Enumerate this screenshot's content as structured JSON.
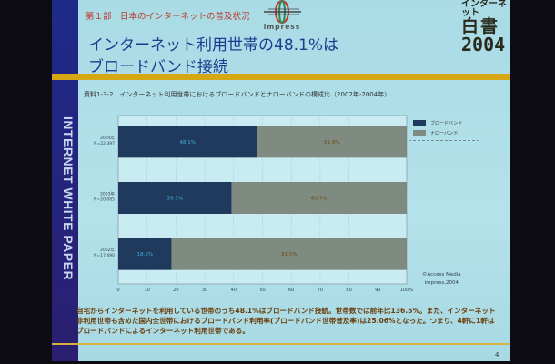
{
  "slide": {
    "section": "第１部　日本のインターネットの普及状況",
    "logo_text": "impress",
    "title_line1": "インターネット利用世帯の48.1%は",
    "title_line2": "ブロードバンド接続",
    "brand_line1": "インターネット",
    "brand_line2": "白書",
    "brand_line3": "2004",
    "sidebar_text": "INTERNET WHITE PAPER",
    "credit_line1": "©Access Media",
    "credit_line2": "impress,2004",
    "body_text": "自宅からインターネットを利用している世帯のうち48.1%はブロードバンド接続。世帯数では前年比136.5%。また、インターネット非利用世帯も含めた国内全世帯におけるブロードバンド利用率(ブロードバンド世帯普及率)は25.06%となった。つまり、4軒に1軒はブロードバンドによるインターネット利用世帯である。",
    "page_number": "4"
  },
  "chart_data": {
    "type": "bar",
    "stacked": true,
    "orientation": "horizontal",
    "title": "資料1-3-2　インターネット利用世帯におけるブロードバンドとナローバンドの構成比（2002年-2004年）",
    "categories": [
      {
        "year": "2004年",
        "n": "N=22,397"
      },
      {
        "year": "2003年",
        "n": "N=20,085"
      },
      {
        "year": "2002年",
        "n": "N=17,490"
      }
    ],
    "series": [
      {
        "name": "ブロードバンド",
        "values": [
          48.1,
          39.3,
          18.5
        ],
        "labels": [
          "48.1%",
          "39.3%",
          "18.5%"
        ],
        "color": "#1f3a5c"
      },
      {
        "name": "ナローバンド",
        "values": [
          51.9,
          60.7,
          81.5
        ],
        "labels": [
          "51.9%",
          "60.7%",
          "81.5%"
        ],
        "color": "#7f8a80"
      }
    ],
    "xlim": [
      0,
      100
    ],
    "xticks": [
      "0",
      "10",
      "20",
      "30",
      "40",
      "50",
      "60",
      "70",
      "80",
      "90",
      "100%"
    ],
    "legend_position": "right"
  }
}
